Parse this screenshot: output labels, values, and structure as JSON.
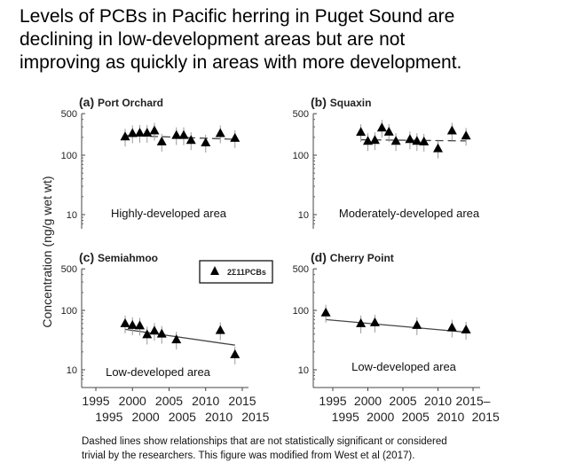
{
  "title_lines": [
    "Levels of PCBs in Pacific herring in Puget Sound are",
    "declining in low-development areas but are not",
    "improving as quickly in areas with more development."
  ],
  "footnote_lines": [
    "Dashed lines show relationships that are not statistically significant or considered",
    "trivial by the researchers. This figure was modified from West et al (2017)."
  ],
  "chart_data": {
    "type": "scatter",
    "ylabel": "Concentration (ng/g wet wt)",
    "yscale": "log",
    "ylim": [
      6,
      500
    ],
    "yticks": [
      10,
      100,
      500
    ],
    "xlim": [
      1992,
      2016
    ],
    "xticks_row1": [
      "1995",
      "2000",
      "2005",
      "2010",
      "2015"
    ],
    "xticks_row2": [
      "1995",
      "2000",
      "2005",
      "2010",
      "2015"
    ],
    "xticks_row1_d_suffix": "–",
    "legend": {
      "label": "2Σ11PCBs",
      "marker": "triangle",
      "placement": "top-right of panel c"
    },
    "panels": [
      {
        "letter": "(a)",
        "name": "Port Orchard",
        "annotation": "Highly-developed area",
        "trend": "dashed",
        "x": [
          1999,
          2000,
          2001,
          2002,
          2003,
          2004,
          2006,
          2007,
          2008,
          2010,
          2012,
          2014
        ],
        "y": [
          204,
          232,
          236,
          236,
          257,
          168,
          216,
          216,
          178,
          162,
          232,
          193
        ],
        "trend_line": {
          "x": [
            1999,
            2014
          ],
          "y": [
            215,
            185
          ]
        }
      },
      {
        "letter": "(b)",
        "name": "Squaxin",
        "annotation": "Moderately-developed area",
        "trend": "dashed",
        "x": [
          1999,
          2000,
          2001,
          2002,
          2003,
          2004,
          2006,
          2007,
          2008,
          2010,
          2012,
          2014
        ],
        "y": [
          243,
          172,
          178,
          288,
          245,
          172,
          184,
          172,
          168,
          129,
          257,
          211
        ],
        "trend_line": {
          "x": [
            1999,
            2014
          ],
          "y": [
            182,
            174
          ]
        }
      },
      {
        "letter": "(c)",
        "name": "Semiahmoo",
        "annotation": "Low-developed area",
        "trend": "solid",
        "x": [
          1999,
          2000,
          2001,
          2002,
          2003,
          2004,
          2006,
          2012,
          2014
        ],
        "y": [
          60,
          56,
          55,
          39,
          45,
          40,
          32,
          46,
          18
        ],
        "trend_line": {
          "x": [
            1999,
            2014
          ],
          "y": [
            48,
            26
          ]
        }
      },
      {
        "letter": "(d)",
        "name": "Cherry Point",
        "annotation": "Low-developed area",
        "trend": "solid",
        "x": [
          1994,
          1999,
          2001,
          2007,
          2012,
          2014
        ],
        "y": [
          91,
          60,
          62,
          56,
          51,
          47
        ],
        "trend_line": {
          "x": [
            1994,
            2014
          ],
          "y": [
            70,
            43
          ]
        }
      }
    ]
  }
}
